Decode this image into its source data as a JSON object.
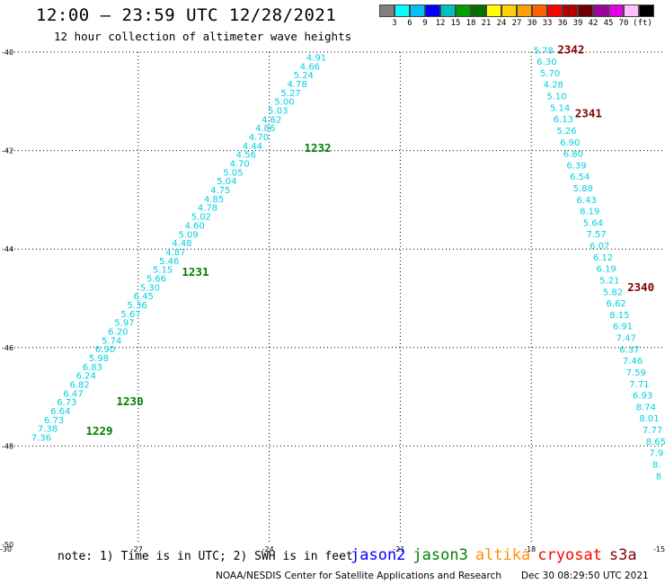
{
  "header": {
    "title": "12:00 – 23:59 UTC 12/28/2021",
    "subtitle": "12 hour collection of altimeter wave heights"
  },
  "legend": {
    "colors": [
      "#808080",
      "#00ffff",
      "#00c0ff",
      "#0000ff",
      "#00bfbf",
      "#00a000",
      "#007000",
      "#ffff00",
      "#ffd000",
      "#ffa000",
      "#ff6000",
      "#ff0000",
      "#b00000",
      "#700000",
      "#a000a0",
      "#e000e0",
      "#ffc0ff",
      "#000000"
    ],
    "labels": [
      "3",
      "6",
      "9",
      "12",
      "15",
      "18",
      "21",
      "24",
      "27",
      "30",
      "33",
      "36",
      "39",
      "42",
      "45",
      "70",
      "(ft)"
    ]
  },
  "chart_data": {
    "type": "scatter",
    "xlim": [
      -30,
      -15
    ],
    "ylim": [
      -50,
      -40
    ],
    "x_ticks": [
      -30,
      -27,
      -24,
      -21,
      -18,
      -15
    ],
    "y_ticks": [
      -40,
      -42,
      -44,
      -46,
      -48,
      -50
    ],
    "grid": true,
    "value_color": "#00d0e0",
    "tracks": [
      {
        "x0": -29.45,
        "y0": -47.82,
        "x1": -23.15,
        "y1": -40.1,
        "values": [
          "7.36",
          "7.38",
          "6.73",
          "6.64",
          "6.73",
          "6.47",
          "6.82",
          "6.24",
          "6.83",
          "5.98",
          "6.90",
          "5.74",
          "6.20",
          "5.97",
          "5.67",
          "5.36",
          "6.45",
          "5.30",
          "5.66",
          "5.15",
          "5.46",
          "4.87",
          "4.48",
          "5.09",
          "4.60",
          "5.02",
          "4.78",
          "4.85",
          "4.75",
          "5.04",
          "5.05",
          "4.70",
          "4.56",
          "4.44",
          "4.70",
          "4.86",
          "4.62",
          "5.03",
          "5.00",
          "5.27",
          "4.78",
          "5.24",
          "4.66",
          "4.91"
        ]
      },
      {
        "x0": -17.95,
        "y0": -39.95,
        "x1": -15.15,
        "y1": -48.6,
        "values": [
          "5.78",
          "6.30",
          "5.70",
          "4.28",
          "5.10",
          "5.14",
          "6.13",
          "5.26",
          "6.90",
          "6.80",
          "6.39",
          "6.54",
          "5.88",
          "6.43",
          "8.19",
          "5.64",
          "7.57",
          "6.07",
          "6.12",
          "6.19",
          "5.21",
          "5.82",
          "6.62",
          "8.15",
          "6.91",
          "7.47",
          "6.37",
          "7.46",
          "7.59",
          "7.71",
          "6.93",
          "8.74",
          "8.01",
          "7.77",
          "8.65",
          "7.9",
          "8.",
          "8"
        ]
      }
    ],
    "time_labels": [
      {
        "text": "1229",
        "x": -28.2,
        "y": -47.7,
        "color": "#008000"
      },
      {
        "text": "1230",
        "x": -27.5,
        "y": -47.1,
        "color": "#008000"
      },
      {
        "text": "1231",
        "x": -26.0,
        "y": -44.47,
        "color": "#008000"
      },
      {
        "text": "1232",
        "x": -23.2,
        "y": -41.95,
        "color": "#008000"
      },
      {
        "text": "2342",
        "x": -17.4,
        "y": -39.95,
        "color": "#800000"
      },
      {
        "text": "2341",
        "x": -17.0,
        "y": -41.25,
        "color": "#800000"
      },
      {
        "text": "2340",
        "x": -15.8,
        "y": -44.78,
        "color": "#800000"
      }
    ]
  },
  "note": "note: 1) Time is in UTC; 2) SWH is in feet",
  "satellites": [
    {
      "name": "jason2",
      "color": "#0000ff"
    },
    {
      "name": "jason3",
      "color": "#008000"
    },
    {
      "name": "altika",
      "color": "#ff9000"
    },
    {
      "name": "cryosat",
      "color": "#ff0000"
    },
    {
      "name": "s3a",
      "color": "#800000"
    }
  ],
  "credit": "NOAA/NESDIS Center for Satellite Applications and Research",
  "timestamp": "Dec 30 08:29:50 UTC 2021"
}
